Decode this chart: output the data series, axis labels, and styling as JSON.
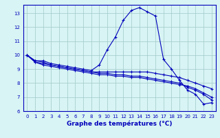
{
  "hours": [
    0,
    1,
    2,
    3,
    4,
    5,
    6,
    7,
    8,
    9,
    10,
    11,
    12,
    13,
    14,
    15,
    16,
    17,
    18,
    19,
    20,
    21,
    22,
    23
  ],
  "line1": [
    10.0,
    9.6,
    9.6,
    9.4,
    9.3,
    9.2,
    9.1,
    9.0,
    8.9,
    9.3,
    10.4,
    11.3,
    12.5,
    13.2,
    13.4,
    13.1,
    12.8,
    9.7,
    9.0,
    8.2,
    7.5,
    7.2,
    6.5,
    6.6
  ],
  "line2": [
    10.0,
    9.6,
    9.5,
    9.3,
    9.2,
    9.1,
    9.0,
    8.9,
    8.8,
    8.8,
    8.8,
    8.8,
    8.8,
    8.8,
    8.8,
    8.8,
    8.7,
    8.6,
    8.5,
    8.4,
    8.2,
    8.0,
    7.8,
    7.6
  ],
  "line3": [
    10.0,
    9.5,
    9.3,
    9.2,
    9.1,
    9.0,
    8.9,
    8.8,
    8.7,
    8.6,
    8.6,
    8.5,
    8.5,
    8.4,
    8.4,
    8.3,
    8.2,
    8.1,
    8.0,
    7.9,
    7.8,
    7.6,
    7.3,
    7.0
  ],
  "line4": [
    10.0,
    9.5,
    9.4,
    9.3,
    9.2,
    9.1,
    9.0,
    8.9,
    8.8,
    8.7,
    8.7,
    8.6,
    8.6,
    8.5,
    8.5,
    8.4,
    8.3,
    8.2,
    8.1,
    8.0,
    7.7,
    7.5,
    7.2,
    6.8
  ],
  "bg_color": "#d8f4f4",
  "grid_color": "#a0c8c8",
  "line_color": "#0000bb",
  "xlabel": "Graphe des températures (°C)",
  "ylim": [
    6,
    13.6
  ],
  "yticks": [
    6,
    7,
    8,
    9,
    10,
    11,
    12,
    13
  ],
  "xlim": [
    -0.5,
    23.5
  ],
  "xticks": [
    0,
    1,
    2,
    3,
    4,
    5,
    6,
    7,
    8,
    9,
    10,
    11,
    12,
    13,
    14,
    15,
    16,
    17,
    18,
    19,
    20,
    21,
    22,
    23
  ],
  "tick_fontsize": 5.0,
  "ylabel_fontsize": 5.0,
  "xlabel_fontsize": 6.5
}
